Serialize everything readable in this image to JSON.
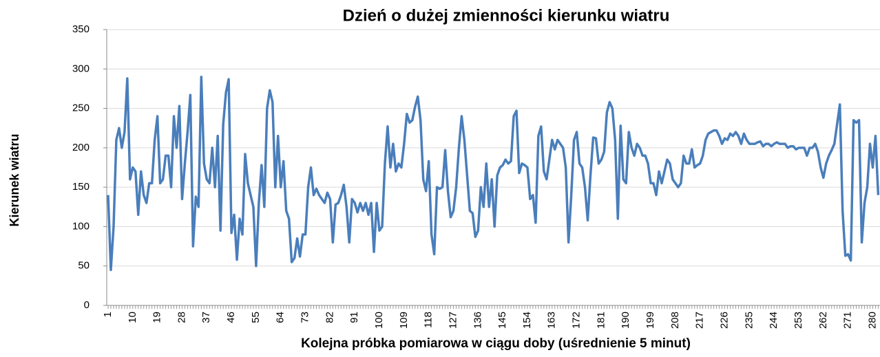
{
  "chart_data": {
    "type": "line",
    "title": "Dzień o dużej zmienności kierunku wiatru",
    "xlabel": "Kolejna próbka pomiarowa w ciągu doby (uśrednienie 5 minut)",
    "ylabel": "Kierunek wiatru",
    "x": [
      1,
      2,
      3,
      4,
      5,
      6,
      7,
      8,
      9,
      10,
      11,
      12,
      13,
      14,
      15,
      16,
      17,
      18,
      19,
      20,
      21,
      22,
      23,
      24,
      25,
      26,
      27,
      28,
      29,
      30,
      31,
      32,
      33,
      34,
      35,
      36,
      37,
      38,
      39,
      40,
      41,
      42,
      43,
      44,
      45,
      46,
      47,
      48,
      49,
      50,
      51,
      52,
      53,
      54,
      55,
      56,
      57,
      58,
      59,
      60,
      61,
      62,
      63,
      64,
      65,
      66,
      67,
      68,
      69,
      70,
      71,
      72,
      73,
      74,
      75,
      76,
      77,
      78,
      79,
      80,
      81,
      82,
      83,
      84,
      85,
      86,
      87,
      88,
      89,
      90,
      91,
      92,
      93,
      94,
      95,
      96,
      97,
      98,
      99,
      100,
      101,
      102,
      103,
      104,
      105,
      106,
      107,
      108,
      109,
      110,
      111,
      112,
      113,
      114,
      115,
      116,
      117,
      118,
      119,
      120,
      121,
      122,
      123,
      124,
      125,
      126,
      127,
      128,
      129,
      130,
      131,
      132,
      133,
      134,
      135,
      136,
      137,
      138,
      139,
      140,
      141,
      142,
      143,
      144,
      145,
      146,
      147,
      148,
      149,
      150,
      151,
      152,
      153,
      154,
      155,
      156,
      157,
      158,
      159,
      160,
      161,
      162,
      163,
      164,
      165,
      166,
      167,
      168,
      169,
      170,
      171,
      172,
      173,
      174,
      175,
      176,
      177,
      178,
      179,
      180,
      181,
      182,
      183,
      184,
      185,
      186,
      187,
      188,
      189,
      190,
      191,
      192,
      193,
      194,
      195,
      196,
      197,
      198,
      199,
      200,
      201,
      202,
      203,
      204,
      205,
      206,
      207,
      208,
      209,
      210,
      211,
      212,
      213,
      214,
      215,
      216,
      217,
      218,
      219,
      220,
      221,
      222,
      223,
      224,
      225,
      226,
      227,
      228,
      229,
      230,
      231,
      232,
      233,
      234,
      235,
      236,
      237,
      238,
      239,
      240,
      241,
      242,
      243,
      244,
      245,
      246,
      247,
      248,
      249,
      250,
      251,
      252,
      253,
      254,
      255,
      256,
      257,
      258,
      259,
      260,
      261,
      262,
      263,
      264,
      265,
      266,
      267,
      268,
      269,
      270,
      271,
      272,
      273,
      274,
      275,
      276,
      277,
      278,
      279,
      280,
      281,
      282
    ],
    "series": [
      {
        "color": "#4a7ebb",
        "values": [
          140,
          45,
          100,
          210,
          225,
          200,
          220,
          288,
          160,
          175,
          170,
          115,
          170,
          140,
          130,
          155,
          155,
          210,
          240,
          155,
          160,
          190,
          190,
          150,
          240,
          200,
          253,
          135,
          180,
          220,
          267,
          75,
          138,
          125,
          290,
          180,
          160,
          155,
          200,
          150,
          215,
          95,
          230,
          270,
          287,
          92,
          115,
          58,
          110,
          90,
          192,
          155,
          140,
          125,
          50,
          130,
          178,
          125,
          250,
          273,
          258,
          150,
          215,
          150,
          183,
          120,
          110,
          55,
          60,
          85,
          62,
          90,
          90,
          150,
          175,
          140,
          148,
          140,
          135,
          130,
          143,
          135,
          80,
          128,
          130,
          140,
          153,
          125,
          80,
          135,
          130,
          118,
          130,
          120,
          130,
          115,
          130,
          68,
          130,
          95,
          100,
          180,
          227,
          175,
          205,
          170,
          180,
          175,
          205,
          243,
          232,
          235,
          252,
          265,
          235,
          160,
          145,
          183,
          90,
          65,
          150,
          148,
          150,
          197,
          145,
          112,
          120,
          150,
          200,
          240,
          210,
          165,
          120,
          117,
          87,
          95,
          150,
          125,
          180,
          125,
          160,
          100,
          165,
          175,
          178,
          185,
          180,
          183,
          240,
          247,
          168,
          180,
          178,
          175,
          135,
          140,
          105,
          215,
          227,
          170,
          160,
          185,
          210,
          198,
          210,
          205,
          200,
          175,
          80,
          140,
          210,
          220,
          180,
          175,
          150,
          108,
          165,
          213,
          212,
          180,
          185,
          195,
          245,
          258,
          250,
          210,
          110,
          228,
          160,
          155,
          220,
          200,
          190,
          205,
          200,
          190,
          190,
          180,
          155,
          155,
          140,
          170,
          155,
          170,
          185,
          180,
          160,
          155,
          150,
          155,
          190,
          180,
          180,
          198,
          175,
          178,
          180,
          190,
          210,
          218,
          220,
          222,
          222,
          215,
          205,
          212,
          210,
          218,
          215,
          220,
          215,
          205,
          218,
          210,
          205,
          205,
          205,
          207,
          208,
          202,
          205,
          205,
          202,
          205,
          207,
          205,
          205,
          205,
          200,
          202,
          202,
          198,
          200,
          200,
          200,
          190,
          200,
          200,
          205,
          195,
          175,
          162,
          180,
          190,
          197,
          205,
          230,
          255,
          120,
          63,
          65,
          57,
          235,
          232,
          235,
          80,
          130,
          150,
          205,
          175,
          215,
          140
        ]
      }
    ],
    "xlim": [
      0.5,
      282.5
    ],
    "xticks": [
      1,
      10,
      19,
      28,
      37,
      46,
      55,
      64,
      73,
      82,
      91,
      100,
      109,
      118,
      127,
      136,
      145,
      154,
      163,
      172,
      181,
      190,
      199,
      208,
      217,
      226,
      235,
      244,
      253,
      262,
      271,
      280
    ],
    "ylim": [
      0,
      350
    ],
    "yticks": [
      0,
      50,
      100,
      150,
      200,
      250,
      300,
      350
    ],
    "grid": true
  }
}
